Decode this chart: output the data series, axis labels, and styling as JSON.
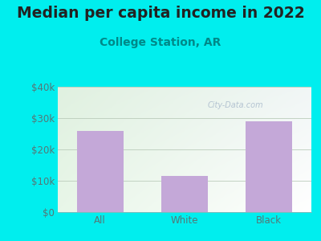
{
  "title": "Median per capita income in 2022",
  "subtitle": "College Station, AR",
  "categories": [
    "All",
    "White",
    "Black"
  ],
  "values": [
    26000,
    11500,
    29000
  ],
  "bar_color": "#c4a8d8",
  "background_color": "#00EEEE",
  "title_color": "#222222",
  "subtitle_color": "#008888",
  "tick_color": "#557777",
  "grid_color": "#bbccbb",
  "ylim": [
    0,
    40000
  ],
  "yticks": [
    0,
    10000,
    20000,
    30000,
    40000
  ],
  "ytick_labels": [
    "$0",
    "$10k",
    "$20k",
    "$30k",
    "$40k"
  ],
  "title_fontsize": 13.5,
  "subtitle_fontsize": 10,
  "tick_fontsize": 8.5,
  "watermark_text": "City-Data.com",
  "watermark_color": "#aabbcc",
  "chart_grad_tl": [
    0.878,
    0.945,
    0.878
  ],
  "chart_grad_tr": [
    0.945,
    0.965,
    0.965
  ],
  "chart_grad_bl": [
    0.91,
    0.965,
    0.91
  ],
  "chart_grad_br": [
    1.0,
    1.0,
    1.0
  ]
}
